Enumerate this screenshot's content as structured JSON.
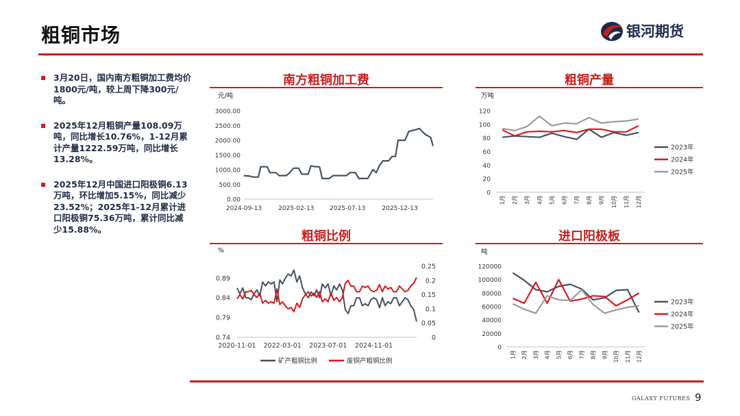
{
  "page": {
    "title": "粗铜市场",
    "logo_text": "银河期货",
    "footer_brand": "GALAXY FUTURES",
    "page_number": "9"
  },
  "bullets": [
    "3月20日，国内南方粗铜加工费均价1800元/吨，较上周下降300元/吨。",
    "2025年12月粗铜产量108.09万吨，同比增长10.76%，1-12月累计产量1222.59万吨，同比增长13.28%。",
    "2025年12月中国进口阳极铜6.13万吨，环比增加5.15%，同比减少23.52%；2025年1-12月累计进口阳极铜75.36万吨，累计同比减少15.88%。"
  ],
  "colors": {
    "accent": "#c81e1e",
    "dark_series": "#45505f",
    "red_series": "#d7191c",
    "gray_series": "#9a9a9a"
  },
  "chart_data": [
    {
      "id": "tc",
      "type": "line",
      "title": "南方粗铜加工费",
      "ylabel": "元/吨",
      "ylim": [
        0,
        3000
      ],
      "yticks": [
        0,
        500,
        1000,
        1500,
        2000,
        2500,
        3000
      ],
      "ytick_labels": [
        "0.00",
        "500.00",
        "1000.00",
        "1500.00",
        "2000.00",
        "2500.00",
        "3000.00"
      ],
      "xlim": [
        "2024-09-13",
        "2026-03-20"
      ],
      "xticks": [
        "2024-09-13",
        "2025-02-13",
        "2025-07-13",
        "2025-12-13"
      ],
      "series": [
        {
          "color": "#45505f",
          "points": [
            [
              "2024-09-13",
              800
            ],
            [
              "2024-10-01",
              780
            ],
            [
              "2024-10-10",
              750
            ],
            [
              "2024-10-25",
              750
            ],
            [
              "2024-11-01",
              1100
            ],
            [
              "2024-11-20",
              1100
            ],
            [
              "2024-11-28",
              900
            ],
            [
              "2024-12-15",
              900
            ],
            [
              "2024-12-25",
              800
            ],
            [
              "2025-01-15",
              800
            ],
            [
              "2025-01-25",
              900
            ],
            [
              "2025-02-05",
              1050
            ],
            [
              "2025-02-20",
              1050
            ],
            [
              "2025-03-01",
              850
            ],
            [
              "2025-03-20",
              850
            ],
            [
              "2025-03-28",
              1130
            ],
            [
              "2025-04-10",
              1100
            ],
            [
              "2025-04-22",
              1100
            ],
            [
              "2025-04-30",
              700
            ],
            [
              "2025-05-20",
              700
            ],
            [
              "2025-06-01",
              800
            ],
            [
              "2025-06-20",
              800
            ],
            [
              "2025-07-10",
              800
            ],
            [
              "2025-07-20",
              900
            ],
            [
              "2025-08-05",
              900
            ],
            [
              "2025-08-15",
              700
            ],
            [
              "2025-09-10",
              700
            ],
            [
              "2025-09-25",
              1000
            ],
            [
              "2025-10-05",
              900
            ],
            [
              "2025-10-15",
              1150
            ],
            [
              "2025-10-25",
              1300
            ],
            [
              "2025-11-10",
              1300
            ],
            [
              "2025-11-20",
              1450
            ],
            [
              "2025-11-30",
              1450
            ],
            [
              "2025-12-08",
              2000
            ],
            [
              "2025-12-28",
              2000
            ],
            [
              "2026-01-08",
              2300
            ],
            [
              "2026-01-25",
              2350
            ],
            [
              "2026-02-08",
              2400
            ],
            [
              "2026-02-25",
              2200
            ],
            [
              "2026-03-13",
              2100
            ],
            [
              "2026-03-20",
              1800
            ]
          ]
        }
      ]
    },
    {
      "id": "output",
      "type": "line",
      "title": "粗铜产量",
      "ylabel": "万吨",
      "ylim": [
        0,
        120
      ],
      "yticks": [
        0,
        20,
        40,
        60,
        80,
        100,
        120
      ],
      "categories": [
        "1月",
        "2月",
        "3月",
        "4月",
        "5月",
        "6月",
        "7月",
        "8月",
        "9月",
        "10月",
        "11月",
        "12月"
      ],
      "series": [
        {
          "name": "2023年",
          "color": "#45505f",
          "values": [
            81,
            83,
            82,
            81,
            87,
            82,
            78,
            93,
            81,
            88,
            84,
            88
          ]
        },
        {
          "name": "2024年",
          "color": "#d7191c",
          "values": [
            92,
            83,
            89,
            90,
            89,
            91,
            88,
            93,
            93,
            89,
            89,
            98
          ]
        },
        {
          "name": "2025年",
          "color": "#9a9a9a",
          "values": [
            94,
            91,
            97,
            112,
            98,
            102,
            101,
            110,
            102,
            104,
            105,
            108
          ]
        }
      ]
    },
    {
      "id": "ratio",
      "type": "line",
      "title": "粗铜比例",
      "ylabel": "%",
      "ylim": [
        0.74,
        0.92
      ],
      "yticks": [
        0.74,
        0.79,
        0.84,
        0.89
      ],
      "ytick_labels": [
        "0.74",
        "0.79",
        "0.84",
        "0.89"
      ],
      "y2lim": [
        0,
        0.25
      ],
      "y2ticks": [
        0,
        0.05,
        0.1,
        0.15,
        0.2,
        0.25
      ],
      "y2tick_labels": [
        "0",
        "0.05",
        "0.1",
        "0.15",
        "0.2",
        "0.25"
      ],
      "xlim": [
        "2020-11-01",
        "2026-02-01"
      ],
      "xticks": [
        "2020-11-01",
        "2022-03-01",
        "2023-07-01",
        "2024-11-01"
      ],
      "series": [
        {
          "name": "矿产粗铜比例",
          "color": "#45505f",
          "axis": "left",
          "points": [
            [
              "2020-11-01",
              0.865
            ],
            [
              "2020-12-01",
              0.85
            ],
            [
              "2021-01-01",
              0.865
            ],
            [
              "2021-02-01",
              0.84
            ],
            [
              "2021-03-01",
              0.84
            ],
            [
              "2021-04-01",
              0.835
            ],
            [
              "2021-05-01",
              0.85
            ],
            [
              "2021-06-01",
              0.86
            ],
            [
              "2021-07-01",
              0.845
            ],
            [
              "2021-08-01",
              0.88
            ],
            [
              "2021-09-01",
              0.87
            ],
            [
              "2021-10-01",
              0.88
            ],
            [
              "2021-11-01",
              0.875
            ],
            [
              "2021-12-01",
              0.88
            ],
            [
              "2022-01-01",
              0.83
            ],
            [
              "2022-02-01",
              0.885
            ],
            [
              "2022-03-01",
              0.875
            ],
            [
              "2022-04-01",
              0.89
            ],
            [
              "2022-05-01",
              0.9
            ],
            [
              "2022-06-01",
              0.895
            ],
            [
              "2022-07-01",
              0.91
            ],
            [
              "2022-08-01",
              0.88
            ],
            [
              "2022-09-01",
              0.895
            ],
            [
              "2022-10-01",
              0.865
            ],
            [
              "2022-11-01",
              0.85
            ],
            [
              "2022-12-01",
              0.84
            ],
            [
              "2023-01-01",
              0.855
            ],
            [
              "2023-02-01",
              0.845
            ],
            [
              "2023-03-01",
              0.86
            ],
            [
              "2023-04-01",
              0.84
            ],
            [
              "2023-05-01",
              0.875
            ],
            [
              "2023-06-01",
              0.865
            ],
            [
              "2023-07-01",
              0.875
            ],
            [
              "2023-08-01",
              0.845
            ],
            [
              "2023-09-01",
              0.87
            ],
            [
              "2023-10-01",
              0.86
            ],
            [
              "2023-11-01",
              0.875
            ],
            [
              "2023-12-01",
              0.86
            ],
            [
              "2024-01-01",
              0.81
            ],
            [
              "2024-02-01",
              0.8
            ],
            [
              "2024-03-01",
              0.82
            ],
            [
              "2024-04-01",
              0.82
            ],
            [
              "2024-05-01",
              0.84
            ],
            [
              "2024-06-01",
              0.84
            ],
            [
              "2024-07-01",
              0.82
            ],
            [
              "2024-08-01",
              0.825
            ],
            [
              "2024-09-01",
              0.82
            ],
            [
              "2024-10-01",
              0.835
            ],
            [
              "2024-11-01",
              0.84
            ],
            [
              "2024-12-01",
              0.835
            ],
            [
              "2025-01-01",
              0.815
            ],
            [
              "2025-02-01",
              0.84
            ],
            [
              "2025-03-01",
              0.82
            ],
            [
              "2025-04-01",
              0.83
            ],
            [
              "2025-05-01",
              0.825
            ],
            [
              "2025-06-01",
              0.84
            ],
            [
              "2025-07-01",
              0.84
            ],
            [
              "2025-08-01",
              0.82
            ],
            [
              "2025-09-01",
              0.83
            ],
            [
              "2025-10-01",
              0.84
            ],
            [
              "2025-11-01",
              0.835
            ],
            [
              "2025-12-01",
              0.82
            ],
            [
              "2026-01-01",
              0.81
            ],
            [
              "2026-02-01",
              0.78
            ]
          ]
        },
        {
          "name": "废铜产粗铜比例",
          "color": "#d7191c",
          "axis": "right",
          "points": [
            [
              "2020-11-01",
              0.135
            ],
            [
              "2020-12-01",
              0.15
            ],
            [
              "2021-01-01",
              0.135
            ],
            [
              "2021-02-01",
              0.16
            ],
            [
              "2021-03-01",
              0.16
            ],
            [
              "2021-04-01",
              0.165
            ],
            [
              "2021-05-01",
              0.15
            ],
            [
              "2021-06-01",
              0.14
            ],
            [
              "2021-07-01",
              0.155
            ],
            [
              "2021-08-01",
              0.12
            ],
            [
              "2021-09-01",
              0.13
            ],
            [
              "2021-10-01",
              0.12
            ],
            [
              "2021-11-01",
              0.125
            ],
            [
              "2021-12-01",
              0.12
            ],
            [
              "2022-01-01",
              0.17
            ],
            [
              "2022-02-01",
              0.115
            ],
            [
              "2022-03-01",
              0.125
            ],
            [
              "2022-04-01",
              0.11
            ],
            [
              "2022-05-01",
              0.1
            ],
            [
              "2022-06-01",
              0.105
            ],
            [
              "2022-07-01",
              0.09
            ],
            [
              "2022-08-01",
              0.12
            ],
            [
              "2022-09-01",
              0.105
            ],
            [
              "2022-10-01",
              0.135
            ],
            [
              "2022-11-01",
              0.15
            ],
            [
              "2022-12-01",
              0.16
            ],
            [
              "2023-01-01",
              0.145
            ],
            [
              "2023-02-01",
              0.155
            ],
            [
              "2023-03-01",
              0.14
            ],
            [
              "2023-04-01",
              0.16
            ],
            [
              "2023-05-01",
              0.125
            ],
            [
              "2023-06-01",
              0.135
            ],
            [
              "2023-07-01",
              0.125
            ],
            [
              "2023-08-01",
              0.155
            ],
            [
              "2023-09-01",
              0.13
            ],
            [
              "2023-10-01",
              0.14
            ],
            [
              "2023-11-01",
              0.125
            ],
            [
              "2023-12-01",
              0.14
            ],
            [
              "2024-01-01",
              0.19
            ],
            [
              "2024-02-01",
              0.2
            ],
            [
              "2024-03-01",
              0.18
            ],
            [
              "2024-04-01",
              0.18
            ],
            [
              "2024-05-01",
              0.16
            ],
            [
              "2024-06-01",
              0.16
            ],
            [
              "2024-07-01",
              0.18
            ],
            [
              "2024-08-01",
              0.175
            ],
            [
              "2024-09-01",
              0.18
            ],
            [
              "2024-10-01",
              0.165
            ],
            [
              "2024-11-01",
              0.16
            ],
            [
              "2024-12-01",
              0.165
            ],
            [
              "2025-01-01",
              0.185
            ],
            [
              "2025-02-01",
              0.16
            ],
            [
              "2025-03-01",
              0.18
            ],
            [
              "2025-04-01",
              0.17
            ],
            [
              "2025-05-01",
              0.175
            ],
            [
              "2025-06-01",
              0.16
            ],
            [
              "2025-07-01",
              0.16
            ],
            [
              "2025-08-01",
              0.18
            ],
            [
              "2025-09-01",
              0.17
            ],
            [
              "2025-10-01",
              0.16
            ],
            [
              "2025-11-01",
              0.165
            ],
            [
              "2025-12-01",
              0.18
            ],
            [
              "2026-01-01",
              0.19
            ],
            [
              "2026-02-01",
              0.21
            ]
          ]
        }
      ]
    },
    {
      "id": "imports",
      "type": "line",
      "title": "进口阳极板",
      "ylabel": "吨",
      "ylim": [
        0,
        120000
      ],
      "yticks": [
        0,
        20000,
        40000,
        60000,
        80000,
        100000,
        120000
      ],
      "categories": [
        "1月",
        "2月",
        "3月",
        "4月",
        "5月",
        "6月",
        "7月",
        "8月",
        "9月",
        "10月",
        "11月",
        "12月"
      ],
      "series": [
        {
          "name": "2023年",
          "color": "#45505f",
          "values": [
            110000,
            99000,
            85000,
            82000,
            90000,
            93000,
            86000,
            70000,
            73000,
            84000,
            85000,
            51000
          ]
        },
        {
          "name": "2024年",
          "color": "#d7191c",
          "values": [
            72000,
            65000,
            96000,
            65000,
            100000,
            68000,
            71000,
            76000,
            75000,
            61000,
            70000,
            80000
          ]
        },
        {
          "name": "2025年",
          "color": "#9a9a9a",
          "values": [
            64000,
            56000,
            50000,
            76000,
            70000,
            69000,
            85000,
            63000,
            50000,
            55000,
            59000,
            61000
          ]
        }
      ]
    }
  ]
}
